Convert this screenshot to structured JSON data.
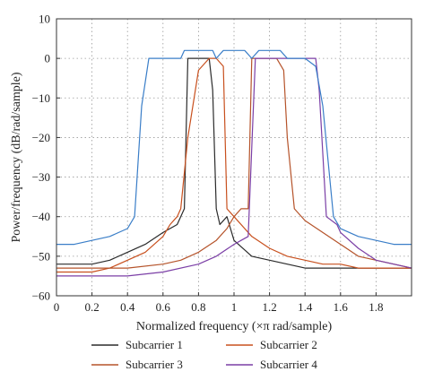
{
  "chart_data": {
    "type": "line",
    "title": "",
    "xlabel": "Normalized frequency (×π rad/sample)",
    "ylabel": "Power/frequency (dB/rad/sample)",
    "xlim": [
      0,
      2
    ],
    "ylim": [
      -60,
      10
    ],
    "xticks": [
      0,
      0.2,
      0.4,
      0.6,
      0.8,
      1,
      1.2,
      1.4,
      1.6,
      1.8
    ],
    "xtick_labels": [
      "0",
      "0.2",
      "0.4",
      "0.6",
      "0.8",
      "1",
      "1.2",
      "1.4",
      "1.6",
      "1.8"
    ],
    "yticks": [
      10,
      0,
      -10,
      -20,
      -30,
      -40,
      -50,
      -60
    ],
    "ytick_labels": [
      "10",
      "0",
      "−10",
      "−20",
      "−30",
      "−40",
      "−50",
      "−60"
    ],
    "grid": true,
    "legend_position": "below",
    "series": [
      {
        "name": "Subcarrier 1",
        "color": "#2b2b2b",
        "x": [
          0,
          0.1,
          0.2,
          0.3,
          0.4,
          0.5,
          0.6,
          0.68,
          0.72,
          0.74,
          0.78,
          0.82,
          0.86,
          0.88,
          0.9,
          0.92,
          0.96,
          1.0,
          1.1,
          1.2,
          1.3,
          1.4,
          1.5,
          1.6,
          1.7,
          1.8,
          1.9,
          2.0
        ],
        "y": [
          -52,
          -52,
          -52,
          -51,
          -49,
          -47,
          -44,
          -42,
          -38,
          0,
          0,
          0,
          0,
          -8,
          -38,
          -42,
          -40,
          -46,
          -50,
          -51,
          -52,
          -53,
          -53,
          -53,
          -53,
          -53,
          -53,
          -53
        ]
      },
      {
        "name": "Subcarrier 2",
        "color": "#c8501e",
        "x": [
          0,
          0.1,
          0.2,
          0.3,
          0.4,
          0.5,
          0.6,
          0.64,
          0.68,
          0.7,
          0.74,
          0.8,
          0.86,
          0.9,
          0.94,
          0.96,
          1.0,
          1.1,
          1.2,
          1.3,
          1.4,
          1.5,
          1.6,
          1.7,
          1.8,
          1.9,
          2.0
        ],
        "y": [
          -54,
          -54,
          -54,
          -53,
          -51,
          -49,
          -45,
          -42,
          -40,
          -38,
          -20,
          -3,
          0,
          0,
          -2,
          -38,
          -40,
          -45,
          -48,
          -50,
          -51,
          -52,
          -52,
          -53,
          -53,
          -53,
          -53
        ]
      },
      {
        "name": "Subcarrier 3",
        "color": "#b5532a",
        "x": [
          0,
          0.2,
          0.4,
          0.6,
          0.7,
          0.8,
          0.9,
          0.96,
          1.0,
          1.04,
          1.08,
          1.1,
          1.16,
          1.2,
          1.24,
          1.28,
          1.3,
          1.34,
          1.4,
          1.5,
          1.6,
          1.7,
          1.8,
          1.9,
          2.0
        ],
        "y": [
          -53,
          -53,
          -53,
          -52,
          -51,
          -49,
          -46,
          -43,
          -40,
          -38,
          -38,
          0,
          0,
          0,
          0,
          -3,
          -20,
          -38,
          -41,
          -44,
          -47,
          -50,
          -51,
          -52,
          -53
        ]
      },
      {
        "name": "Subcarrier 4",
        "color": "#7b3fa6",
        "x": [
          0,
          0.2,
          0.4,
          0.6,
          0.8,
          0.9,
          1.0,
          1.04,
          1.08,
          1.12,
          1.2,
          1.3,
          1.34,
          1.4,
          1.46,
          1.48,
          1.52,
          1.58,
          1.6,
          1.7,
          1.8,
          1.9,
          2.0
        ],
        "y": [
          -55,
          -55,
          -55,
          -54,
          -52,
          -50,
          -47,
          -46,
          -45,
          0,
          0,
          0,
          0,
          0,
          0,
          -8,
          -40,
          -42,
          -44,
          -48,
          -51,
          -52,
          -53
        ]
      },
      {
        "name": "",
        "color": "#3a7ec8",
        "x": [
          0,
          0.1,
          0.2,
          0.3,
          0.4,
          0.44,
          0.48,
          0.52,
          0.6,
          0.7,
          0.72,
          0.8,
          0.88,
          0.9,
          0.94,
          1.0,
          1.06,
          1.1,
          1.14,
          1.2,
          1.26,
          1.3,
          1.4,
          1.46,
          1.5,
          1.56,
          1.6,
          1.7,
          1.8,
          1.9,
          2.0
        ],
        "y": [
          -47,
          -47,
          -46,
          -45,
          -43,
          -40,
          -12,
          0,
          0,
          0,
          2,
          2,
          2,
          0,
          2,
          2,
          2,
          0,
          2,
          2,
          2,
          0,
          0,
          -2,
          -12,
          -40,
          -43,
          -45,
          -46,
          -47,
          -47
        ]
      }
    ]
  },
  "legend": {
    "items": [
      {
        "label": "Subcarrier 1",
        "color": "#2b2b2b"
      },
      {
        "label": "Subcarrier 2",
        "color": "#c8501e"
      },
      {
        "label": "Subcarrier 3",
        "color": "#b5532a"
      },
      {
        "label": "Subcarrier 4",
        "color": "#7b3fa6"
      }
    ]
  }
}
